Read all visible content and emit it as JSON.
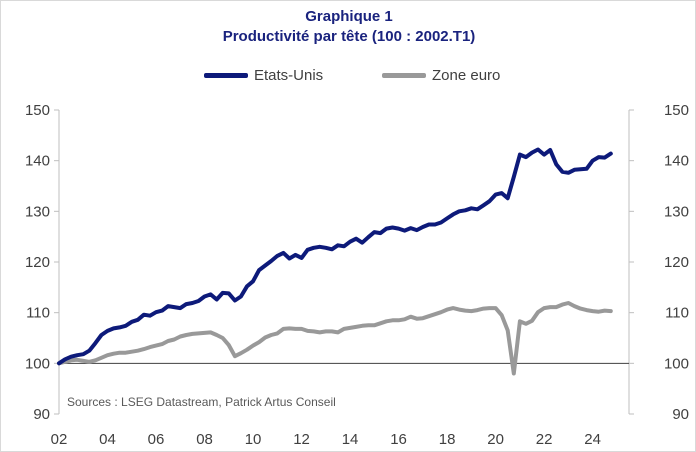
{
  "chart_data": {
    "type": "line",
    "title": "Graphique 1",
    "subtitle": "Productivité par tête (100 : 2002.T1)",
    "source": "Sources : LSEG Datastream, Patrick Artus Conseil",
    "ylim": [
      90,
      150
    ],
    "y_ticks": [
      90,
      100,
      110,
      120,
      130,
      140,
      150
    ],
    "xlim": [
      2002,
      2025.5
    ],
    "x_ticks": [
      2002,
      2004,
      2006,
      2008,
      2010,
      2012,
      2014,
      2016,
      2018,
      2020,
      2022,
      2024
    ],
    "x_tick_labels": [
      "02",
      "04",
      "06",
      "08",
      "10",
      "12",
      "14",
      "16",
      "18",
      "20",
      "22",
      "24"
    ],
    "reference_line": 100,
    "legend_position": "top",
    "grid": false,
    "series": [
      {
        "name": "Etats-Unis",
        "color": "#0d1a7a",
        "points": [
          [
            2002.0,
            100.0
          ],
          [
            2002.25,
            100.8
          ],
          [
            2002.5,
            101.3
          ],
          [
            2002.75,
            101.6
          ],
          [
            2003.0,
            101.8
          ],
          [
            2003.25,
            102.5
          ],
          [
            2003.5,
            104.0
          ],
          [
            2003.75,
            105.6
          ],
          [
            2004.0,
            106.4
          ],
          [
            2004.25,
            106.9
          ],
          [
            2004.5,
            107.1
          ],
          [
            2004.75,
            107.4
          ],
          [
            2005.0,
            108.2
          ],
          [
            2005.25,
            108.6
          ],
          [
            2005.5,
            109.6
          ],
          [
            2005.75,
            109.4
          ],
          [
            2006.0,
            110.1
          ],
          [
            2006.25,
            110.4
          ],
          [
            2006.5,
            111.3
          ],
          [
            2006.75,
            111.1
          ],
          [
            2007.0,
            110.9
          ],
          [
            2007.25,
            111.7
          ],
          [
            2007.5,
            111.9
          ],
          [
            2007.75,
            112.3
          ],
          [
            2008.0,
            113.2
          ],
          [
            2008.25,
            113.6
          ],
          [
            2008.5,
            112.6
          ],
          [
            2008.75,
            113.9
          ],
          [
            2009.0,
            113.8
          ],
          [
            2009.25,
            112.4
          ],
          [
            2009.5,
            113.2
          ],
          [
            2009.75,
            115.2
          ],
          [
            2010.0,
            116.2
          ],
          [
            2010.25,
            118.4
          ],
          [
            2010.5,
            119.3
          ],
          [
            2010.75,
            120.2
          ],
          [
            2011.0,
            121.2
          ],
          [
            2011.25,
            121.8
          ],
          [
            2011.5,
            120.7
          ],
          [
            2011.75,
            121.4
          ],
          [
            2012.0,
            120.8
          ],
          [
            2012.25,
            122.4
          ],
          [
            2012.5,
            122.8
          ],
          [
            2012.75,
            123.0
          ],
          [
            2013.0,
            122.8
          ],
          [
            2013.25,
            122.5
          ],
          [
            2013.5,
            123.3
          ],
          [
            2013.75,
            123.1
          ],
          [
            2014.0,
            124.0
          ],
          [
            2014.25,
            124.6
          ],
          [
            2014.5,
            123.8
          ],
          [
            2014.75,
            124.9
          ],
          [
            2015.0,
            125.9
          ],
          [
            2015.25,
            125.7
          ],
          [
            2015.5,
            126.6
          ],
          [
            2015.75,
            126.8
          ],
          [
            2016.0,
            126.6
          ],
          [
            2016.25,
            126.2
          ],
          [
            2016.5,
            126.7
          ],
          [
            2016.75,
            126.3
          ],
          [
            2017.0,
            126.9
          ],
          [
            2017.25,
            127.4
          ],
          [
            2017.5,
            127.4
          ],
          [
            2017.75,
            127.8
          ],
          [
            2018.0,
            128.6
          ],
          [
            2018.25,
            129.4
          ],
          [
            2018.5,
            130.0
          ],
          [
            2018.75,
            130.2
          ],
          [
            2019.0,
            130.6
          ],
          [
            2019.25,
            130.4
          ],
          [
            2019.5,
            131.2
          ],
          [
            2019.75,
            132.0
          ],
          [
            2020.0,
            133.3
          ],
          [
            2020.25,
            133.6
          ],
          [
            2020.5,
            132.6
          ],
          [
            2020.75,
            136.8
          ],
          [
            2021.0,
            141.2
          ],
          [
            2021.25,
            140.7
          ],
          [
            2021.5,
            141.6
          ],
          [
            2021.75,
            142.2
          ],
          [
            2022.0,
            141.2
          ],
          [
            2022.25,
            142.1
          ],
          [
            2022.5,
            139.3
          ],
          [
            2022.75,
            137.8
          ],
          [
            2023.0,
            137.6
          ],
          [
            2023.25,
            138.2
          ],
          [
            2023.5,
            138.3
          ],
          [
            2023.75,
            138.4
          ],
          [
            2024.0,
            140.0
          ],
          [
            2024.25,
            140.7
          ],
          [
            2024.5,
            140.6
          ],
          [
            2024.75,
            141.4
          ]
        ]
      },
      {
        "name": "Zone euro",
        "color": "#999999",
        "points": [
          [
            2002.0,
            100.0
          ],
          [
            2002.25,
            100.3
          ],
          [
            2002.5,
            100.6
          ],
          [
            2002.75,
            100.7
          ],
          [
            2003.0,
            100.5
          ],
          [
            2003.25,
            100.3
          ],
          [
            2003.5,
            100.6
          ],
          [
            2003.75,
            101.1
          ],
          [
            2004.0,
            101.6
          ],
          [
            2004.25,
            101.9
          ],
          [
            2004.5,
            102.1
          ],
          [
            2004.75,
            102.1
          ],
          [
            2005.0,
            102.3
          ],
          [
            2005.25,
            102.5
          ],
          [
            2005.5,
            102.8
          ],
          [
            2005.75,
            103.2
          ],
          [
            2006.0,
            103.5
          ],
          [
            2006.25,
            103.8
          ],
          [
            2006.5,
            104.4
          ],
          [
            2006.75,
            104.7
          ],
          [
            2007.0,
            105.3
          ],
          [
            2007.25,
            105.6
          ],
          [
            2007.5,
            105.8
          ],
          [
            2007.75,
            105.9
          ],
          [
            2008.0,
            106.0
          ],
          [
            2008.25,
            106.1
          ],
          [
            2008.5,
            105.6
          ],
          [
            2008.75,
            105.0
          ],
          [
            2009.0,
            103.6
          ],
          [
            2009.25,
            101.4
          ],
          [
            2009.5,
            102.0
          ],
          [
            2009.75,
            102.7
          ],
          [
            2010.0,
            103.5
          ],
          [
            2010.25,
            104.2
          ],
          [
            2010.5,
            105.1
          ],
          [
            2010.75,
            105.6
          ],
          [
            2011.0,
            105.9
          ],
          [
            2011.25,
            106.8
          ],
          [
            2011.5,
            106.9
          ],
          [
            2011.75,
            106.8
          ],
          [
            2012.0,
            106.8
          ],
          [
            2012.25,
            106.4
          ],
          [
            2012.5,
            106.3
          ],
          [
            2012.75,
            106.1
          ],
          [
            2013.0,
            106.3
          ],
          [
            2013.25,
            106.3
          ],
          [
            2013.5,
            106.1
          ],
          [
            2013.75,
            106.8
          ],
          [
            2014.0,
            107.0
          ],
          [
            2014.25,
            107.2
          ],
          [
            2014.5,
            107.4
          ],
          [
            2014.75,
            107.5
          ],
          [
            2015.0,
            107.5
          ],
          [
            2015.25,
            107.9
          ],
          [
            2015.5,
            108.3
          ],
          [
            2015.75,
            108.5
          ],
          [
            2016.0,
            108.5
          ],
          [
            2016.25,
            108.7
          ],
          [
            2016.5,
            109.2
          ],
          [
            2016.75,
            108.8
          ],
          [
            2017.0,
            108.9
          ],
          [
            2017.25,
            109.3
          ],
          [
            2017.5,
            109.7
          ],
          [
            2017.75,
            110.1
          ],
          [
            2018.0,
            110.6
          ],
          [
            2018.25,
            110.9
          ],
          [
            2018.5,
            110.6
          ],
          [
            2018.75,
            110.4
          ],
          [
            2019.0,
            110.3
          ],
          [
            2019.25,
            110.5
          ],
          [
            2019.5,
            110.8
          ],
          [
            2019.75,
            110.9
          ],
          [
            2020.0,
            110.9
          ],
          [
            2020.25,
            109.5
          ],
          [
            2020.5,
            106.5
          ],
          [
            2020.75,
            98.0
          ],
          [
            2021.0,
            108.3
          ],
          [
            2021.25,
            107.8
          ],
          [
            2021.5,
            108.4
          ],
          [
            2021.75,
            110.1
          ],
          [
            2022.0,
            110.9
          ],
          [
            2022.25,
            111.1
          ],
          [
            2022.5,
            111.1
          ],
          [
            2022.75,
            111.6
          ],
          [
            2023.0,
            111.9
          ],
          [
            2023.25,
            111.3
          ],
          [
            2023.5,
            110.8
          ],
          [
            2023.75,
            110.5
          ],
          [
            2024.0,
            110.3
          ],
          [
            2024.25,
            110.2
          ],
          [
            2024.5,
            110.4
          ],
          [
            2024.75,
            110.3
          ]
        ]
      }
    ]
  }
}
